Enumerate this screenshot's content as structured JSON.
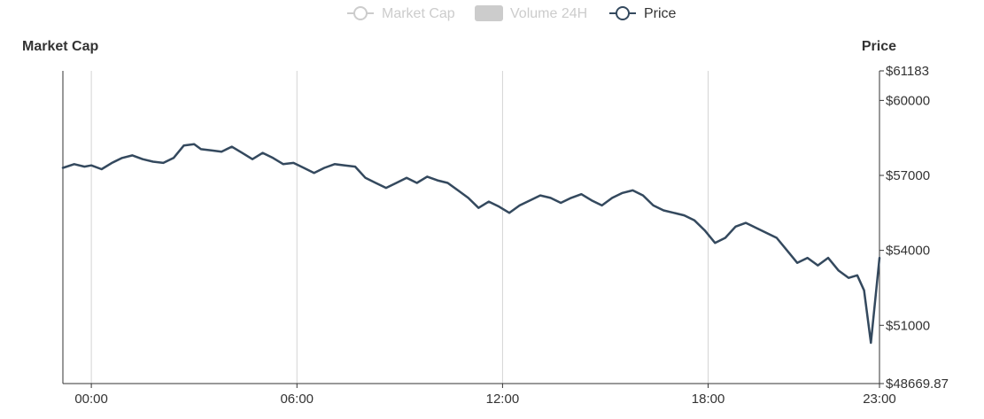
{
  "legend": {
    "items": [
      {
        "label": "Market Cap",
        "active": false,
        "symbol": "line-circle"
      },
      {
        "label": "Volume 24H",
        "active": false,
        "symbol": "rect"
      },
      {
        "label": "Price",
        "active": true,
        "symbol": "line-circle"
      }
    ]
  },
  "colors": {
    "price_line": "#34495e",
    "inactive": "#cccccc",
    "axis": "#333333",
    "grid": "#d4d4d4"
  },
  "chart_data": {
    "type": "line",
    "title": "",
    "left_axis_label": "Market Cap",
    "right_axis_label": "Price",
    "x_ticks": [
      "00:00",
      "06:00",
      "12:00",
      "18:00",
      "23:00"
    ],
    "x_range_hours": [
      -0.83,
      23.0
    ],
    "x_tick_hours": [
      0,
      6,
      12,
      18,
      23
    ],
    "y_ticks": [
      "$61183",
      "$60000",
      "$57000",
      "$54000",
      "$51000",
      "$48669.87"
    ],
    "y_tick_values": [
      61183,
      60000,
      57000,
      54000,
      51000,
      48669.87
    ],
    "ylim": [
      48669.87,
      61183
    ],
    "grid": "vertical",
    "legend_position": "top-center",
    "series": [
      {
        "name": "Price",
        "x": [
          -0.83,
          -0.5,
          -0.2,
          0.0,
          0.3,
          0.6,
          0.9,
          1.2,
          1.5,
          1.8,
          2.1,
          2.4,
          2.7,
          3.0,
          3.2,
          3.5,
          3.8,
          4.1,
          4.4,
          4.7,
          5.0,
          5.3,
          5.6,
          5.9,
          6.2,
          6.5,
          6.8,
          7.1,
          7.4,
          7.7,
          8.0,
          8.3,
          8.6,
          8.9,
          9.2,
          9.5,
          9.8,
          10.1,
          10.4,
          10.7,
          11.0,
          11.3,
          11.6,
          11.9,
          12.2,
          12.5,
          12.8,
          13.1,
          13.4,
          13.7,
          14.0,
          14.3,
          14.6,
          14.9,
          15.2,
          15.5,
          15.8,
          16.1,
          16.4,
          16.7,
          17.0,
          17.3,
          17.6,
          17.9,
          18.2,
          18.5,
          18.8,
          19.1,
          19.4,
          19.7,
          20.0,
          20.3,
          20.6,
          20.9,
          21.2,
          21.5,
          21.8,
          22.1,
          22.35,
          22.55,
          22.75,
          23.0
        ],
        "values": [
          57300,
          57450,
          57350,
          57400,
          57250,
          57500,
          57700,
          57800,
          57650,
          57550,
          57500,
          57700,
          58200,
          58250,
          58050,
          58000,
          57950,
          58150,
          57900,
          57650,
          57900,
          57700,
          57450,
          57500,
          57300,
          57100,
          57300,
          57450,
          57400,
          57350,
          56900,
          56700,
          56500,
          56700,
          56900,
          56700,
          56950,
          56800,
          56700,
          56400,
          56100,
          55700,
          55950,
          55750,
          55500,
          55800,
          56000,
          56200,
          56100,
          55900,
          56100,
          56250,
          56000,
          55800,
          56100,
          56300,
          56400,
          56200,
          55800,
          55600,
          55500,
          55400,
          55200,
          54800,
          54300,
          54500,
          54950,
          55100,
          54900,
          54700,
          54500,
          54000,
          53500,
          53700,
          53400,
          53700,
          53200,
          52900,
          53000,
          52400,
          50300,
          53700
        ]
      }
    ]
  }
}
